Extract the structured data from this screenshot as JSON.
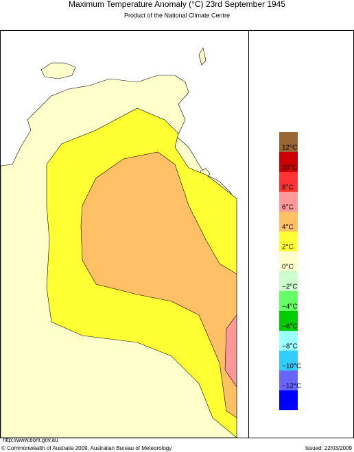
{
  "header": {
    "title": "Maximum Temperature Anomaly (°C)  23rd September 1945",
    "subtitle": "Product of the National Climate Centre"
  },
  "legend": {
    "colors": [
      "#996633",
      "#cc0000",
      "#ff3333",
      "#ff9999",
      "#ffc066",
      "#ffff33",
      "#ffffcc",
      "#ccffcc",
      "#66ff66",
      "#00cc00",
      "#99ffff",
      "#33ccff",
      "#6666ff",
      "#0000ff"
    ],
    "labels": [
      "12°C",
      "10°C",
      "8°C",
      "6°C",
      "4°C",
      "2°C",
      "0°C",
      "−2°C",
      "−4°C",
      "−6°C",
      "−8°C",
      "−10°C",
      "−12°C"
    ]
  },
  "footer": {
    "url": "http://www.bom.gov.au",
    "copyright": "© Commonwealth of Australia 2009, Australian Bureau of Meteorology",
    "issued": "Issued: 22/03/2009"
  }
}
